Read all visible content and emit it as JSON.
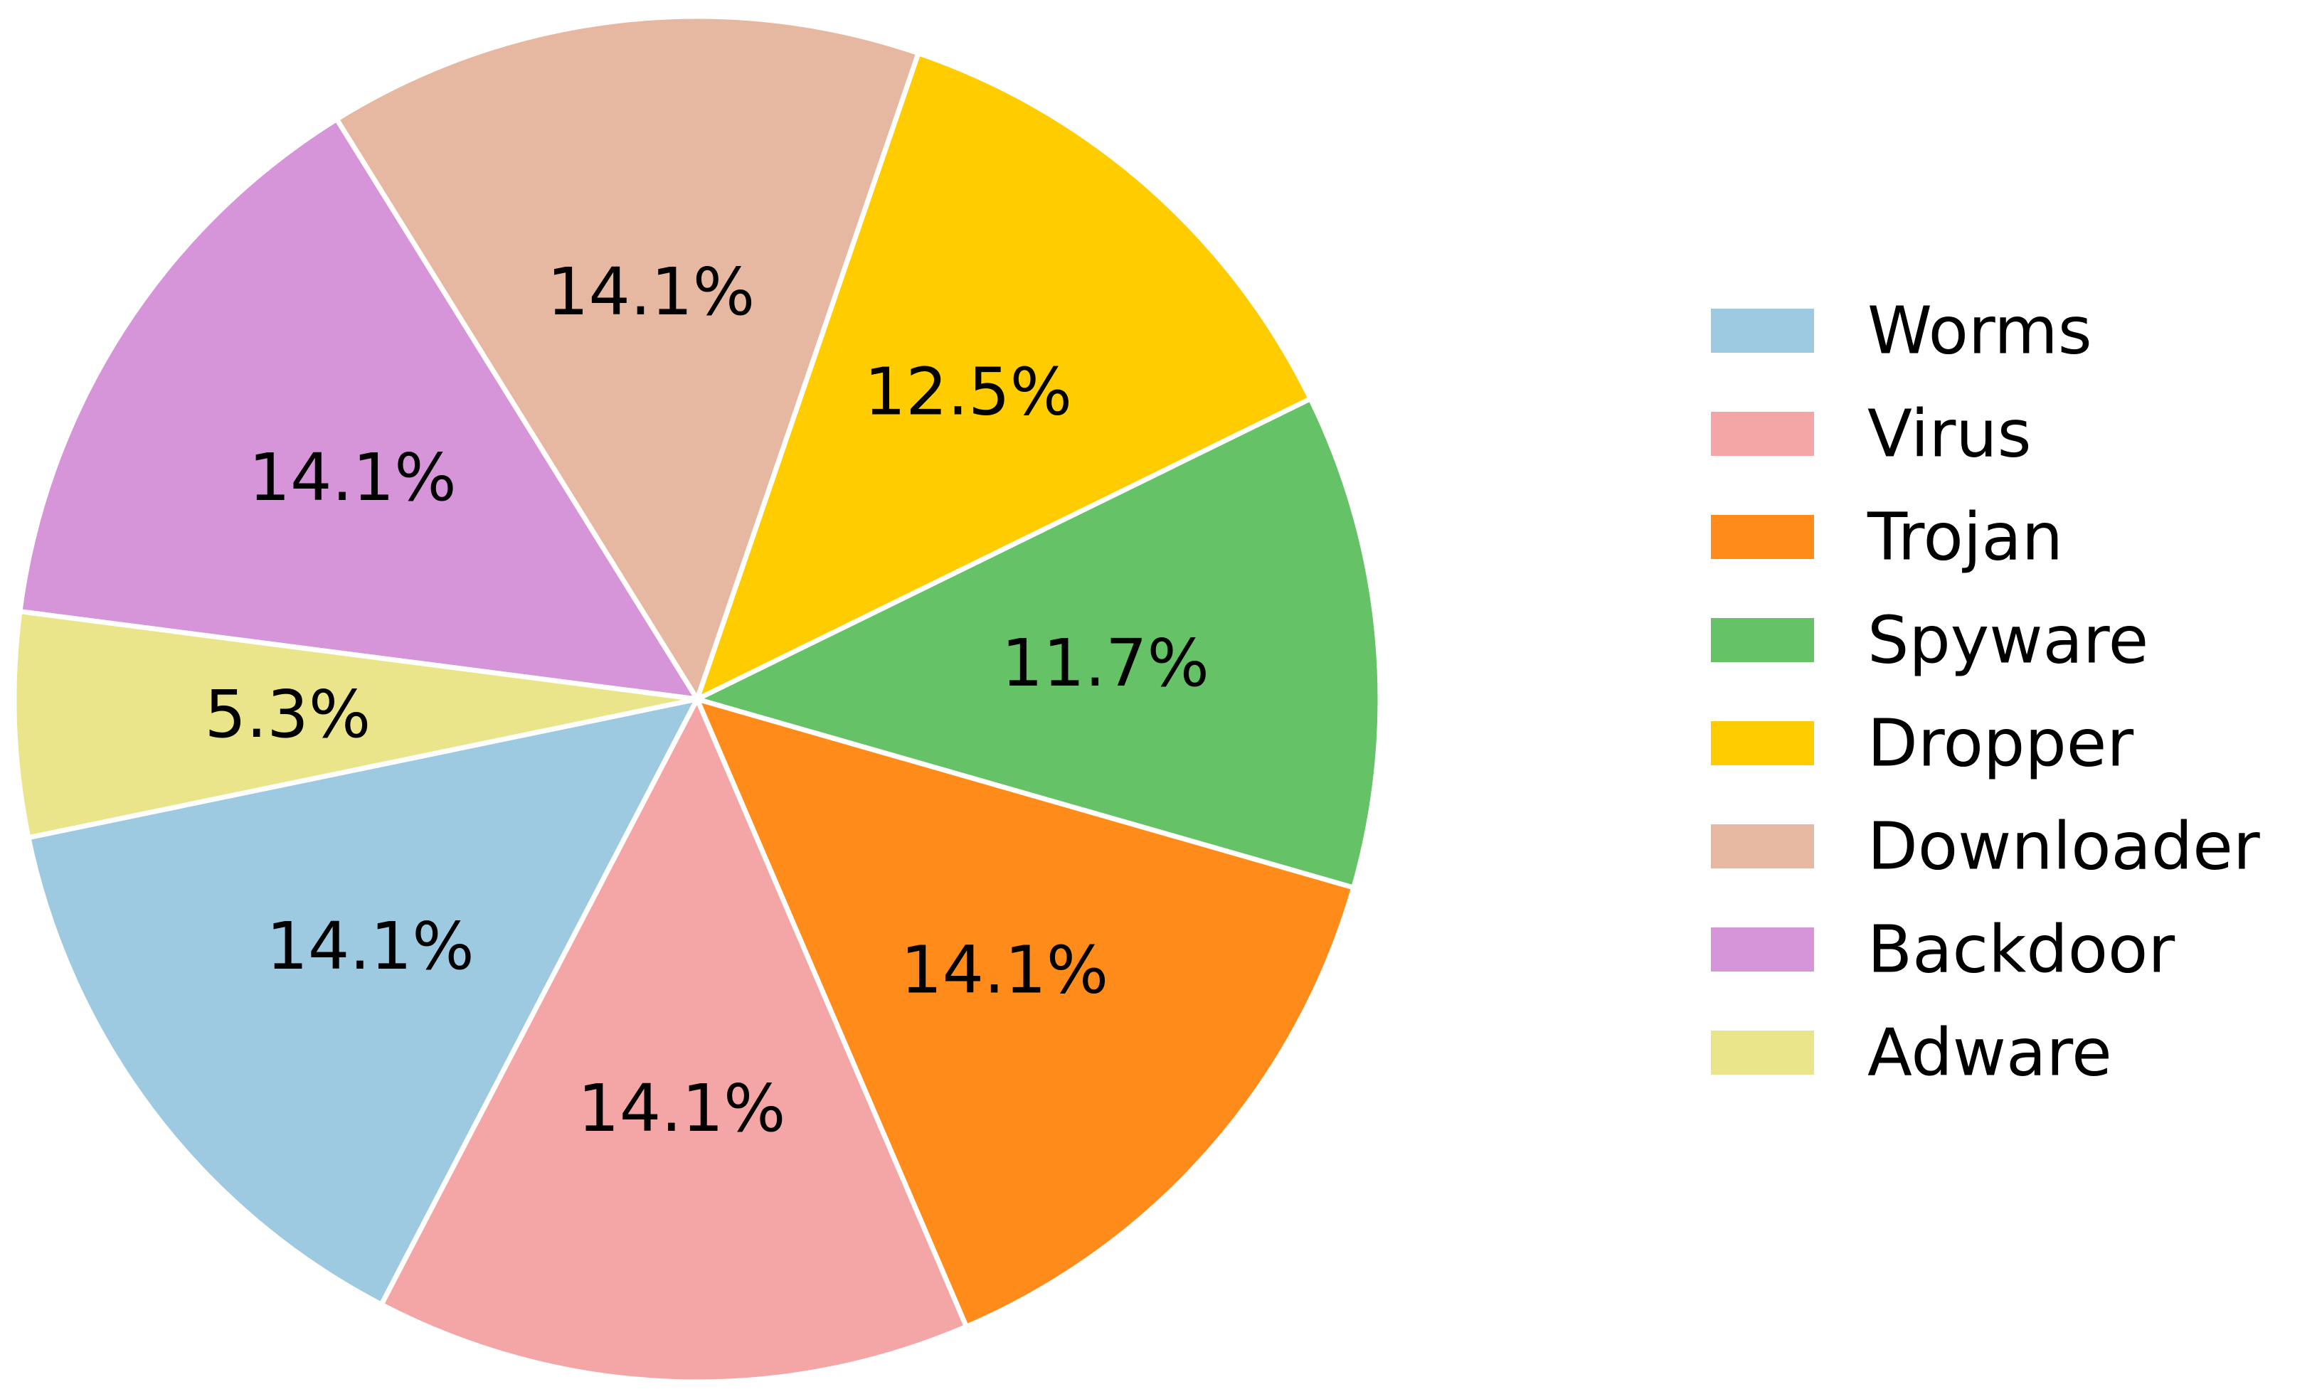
{
  "chart_data": {
    "type": "pie",
    "title": "",
    "start_angle_deg": 191.7,
    "direction": "counterclockwise",
    "slices": [
      {
        "name": "Worms",
        "label": "14.1%",
        "value": 14.1,
        "color": "#9ecae1"
      },
      {
        "name": "Virus",
        "label": "14.1%",
        "value": 14.1,
        "color": "#f4a6a6"
      },
      {
        "name": "Trojan",
        "label": "14.1%",
        "value": 14.1,
        "color": "#ff8c1a"
      },
      {
        "name": "Spyware",
        "label": "11.7%",
        "value": 11.7,
        "color": "#66c266"
      },
      {
        "name": "Dropper",
        "label": "12.5%",
        "value": 12.5,
        "color": "#ffcc00"
      },
      {
        "name": "Downloader",
        "label": "14.1%",
        "value": 14.1,
        "color": "#e6b8a2"
      },
      {
        "name": "Backdoor",
        "label": "14.1%",
        "value": 14.1,
        "color": "#d694d9"
      },
      {
        "name": "Adware",
        "label": "5.3%",
        "value": 5.3,
        "color": "#eae58a"
      }
    ],
    "legend": {
      "placement": "right",
      "entries": [
        "Worms",
        "Virus",
        "Trojan",
        "Spyware",
        "Dropper",
        "Downloader",
        "Backdoor",
        "Adware"
      ]
    }
  }
}
